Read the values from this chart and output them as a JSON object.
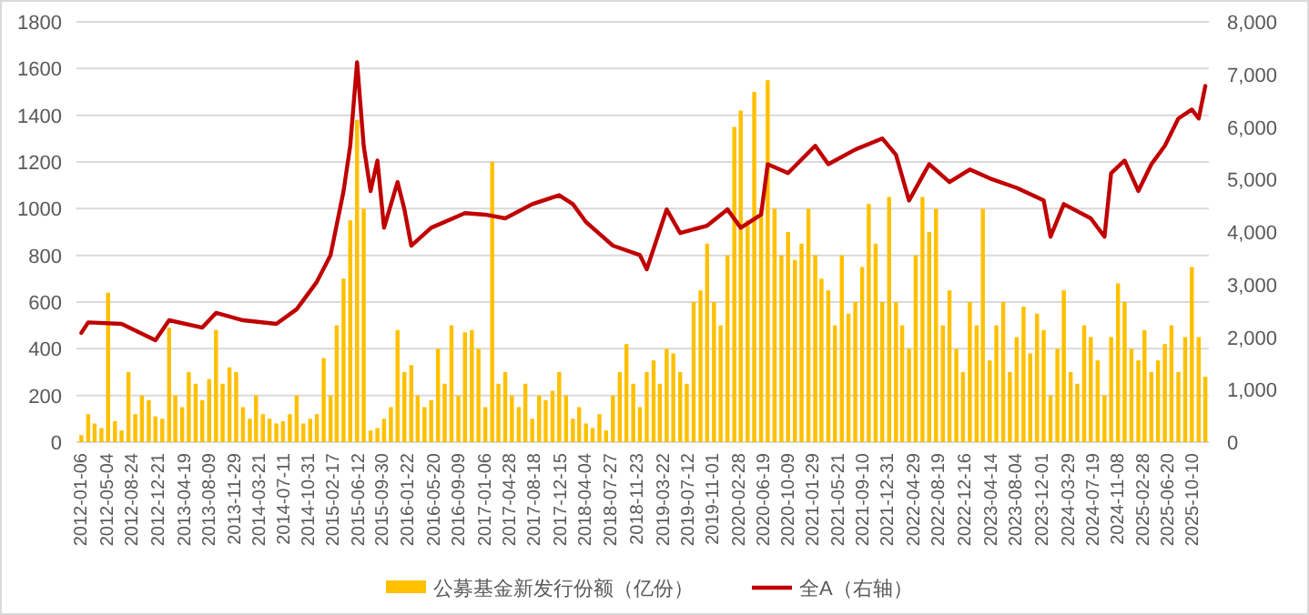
{
  "chart_data": {
    "type": "bar",
    "legend": "bottom",
    "grid": "y",
    "xlim": [
      "2011-12-24",
      "2025-12-31"
    ],
    "xticks": [
      "2012-01-06",
      "2012-05-04",
      "2012-08-24",
      "2012-12-21",
      "2013-04-19",
      "2013-08-09",
      "2013-11-29",
      "2014-03-21",
      "2014-07-11",
      "2014-10-31",
      "2015-02-17",
      "2015-06-12",
      "2015-09-30",
      "2016-01-22",
      "2016-05-20",
      "2016-09-09",
      "2017-01-06",
      "2017-04-28",
      "2017-08-18",
      "2017-12-15",
      "2018-04-04",
      "2018-07-27",
      "2018-11-23",
      "2019-03-22",
      "2019-07-12",
      "2019-11-01",
      "2020-02-28",
      "2020-06-19",
      "2020-10-09",
      "2021-01-29",
      "2021-05-21",
      "2021-09-10",
      "2021-12-31",
      "2022-04-29",
      "2022-08-19",
      "2022-12-16",
      "2023-04-14",
      "2023-08-04",
      "2023-12-01",
      "2024-03-29",
      "2024-07-19",
      "2024-11-08",
      "2025-02-28",
      "2025-06-20",
      "2025-10-10"
    ],
    "ylim": [
      0,
      1800
    ],
    "yticks": [
      0,
      200,
      400,
      600,
      800,
      1000,
      1200,
      1400,
      1600,
      1800
    ],
    "y2lim": [
      0,
      8000
    ],
    "y2ticks": [
      {
        "value": 0,
        "label": "0"
      },
      {
        "value": 1000,
        "label": "1,000"
      },
      {
        "value": 2000,
        "label": "2,000"
      },
      {
        "value": 3000,
        "label": "3,000"
      },
      {
        "value": 4000,
        "label": "4,000"
      },
      {
        "value": 5000,
        "label": "5,000"
      },
      {
        "value": 6000,
        "label": "6,000"
      },
      {
        "value": 7000,
        "label": "7,000"
      },
      {
        "value": 8000,
        "label": "8,000"
      }
    ],
    "series": [
      {
        "name": "公募基金新发行份额（亿份）",
        "color": "#ffc000",
        "x": [
          "2012-01",
          "2012-02",
          "2012-03",
          "2012-04",
          "2012-05",
          "2012-06",
          "2012-07",
          "2012-08",
          "2012-09",
          "2012-10",
          "2012-11",
          "2012-12",
          "2013-01",
          "2013-02",
          "2013-03",
          "2013-04",
          "2013-05",
          "2013-06",
          "2013-07",
          "2013-08",
          "2013-09",
          "2013-10",
          "2013-11",
          "2013-12",
          "2014-01",
          "2014-02",
          "2014-03",
          "2014-04",
          "2014-05",
          "2014-06",
          "2014-07",
          "2014-08",
          "2014-09",
          "2014-10",
          "2014-11",
          "2014-12",
          "2015-01",
          "2015-02",
          "2015-03",
          "2015-04",
          "2015-05",
          "2015-06",
          "2015-07",
          "2015-08",
          "2015-09",
          "2015-10",
          "2015-11",
          "2015-12",
          "2016-01",
          "2016-02",
          "2016-03",
          "2016-04",
          "2016-05",
          "2016-06",
          "2016-07",
          "2016-08",
          "2016-09",
          "2016-10",
          "2016-11",
          "2016-12",
          "2017-01",
          "2017-02",
          "2017-03",
          "2017-04",
          "2017-05",
          "2017-06",
          "2017-07",
          "2017-08",
          "2017-09",
          "2017-10",
          "2017-11",
          "2017-12",
          "2018-01",
          "2018-02",
          "2018-03",
          "2018-04",
          "2018-05",
          "2018-06",
          "2018-07",
          "2018-08",
          "2018-09",
          "2018-10",
          "2018-11",
          "2018-12",
          "2019-01",
          "2019-02",
          "2019-03",
          "2019-04",
          "2019-05",
          "2019-06",
          "2019-07",
          "2019-08",
          "2019-09",
          "2019-10",
          "2019-11",
          "2019-12",
          "2020-01",
          "2020-02",
          "2020-03",
          "2020-04",
          "2020-05",
          "2020-06",
          "2020-07",
          "2020-08",
          "2020-09",
          "2020-10",
          "2020-11",
          "2020-12",
          "2021-01",
          "2021-02",
          "2021-03",
          "2021-04",
          "2021-05",
          "2021-06",
          "2021-07",
          "2021-08",
          "2021-09",
          "2021-10",
          "2021-11",
          "2021-12",
          "2022-01",
          "2022-02",
          "2022-03",
          "2022-04",
          "2022-05",
          "2022-06",
          "2022-07",
          "2022-08",
          "2022-09",
          "2022-10",
          "2022-11",
          "2022-12",
          "2023-01",
          "2023-02",
          "2023-03",
          "2023-04",
          "2023-05",
          "2023-06",
          "2023-07",
          "2023-08",
          "2023-09",
          "2023-10",
          "2023-11",
          "2023-12",
          "2024-01",
          "2024-02",
          "2024-03",
          "2024-04",
          "2024-05",
          "2024-06",
          "2024-07",
          "2024-08",
          "2024-09",
          "2024-10",
          "2024-11",
          "2024-12",
          "2025-01",
          "2025-02",
          "2025-03",
          "2025-04",
          "2025-05",
          "2025-06",
          "2025-07",
          "2025-08",
          "2025-09",
          "2025-10",
          "2025-11",
          "2025-12"
        ],
        "values": [
          30,
          120,
          80,
          60,
          640,
          90,
          50,
          300,
          120,
          200,
          180,
          110,
          100,
          490,
          200,
          150,
          300,
          250,
          180,
          270,
          480,
          250,
          320,
          300,
          150,
          100,
          200,
          120,
          100,
          80,
          90,
          120,
          200,
          80,
          100,
          120,
          360,
          200,
          500,
          700,
          950,
          1380,
          1000,
          50,
          60,
          100,
          150,
          480,
          300,
          330,
          200,
          150,
          180,
          400,
          250,
          500,
          200,
          470,
          480,
          400,
          150,
          1200,
          250,
          300,
          200,
          150,
          250,
          100,
          200,
          180,
          220,
          300,
          200,
          100,
          150,
          80,
          60,
          120,
          50,
          200,
          300,
          420,
          250,
          150,
          300,
          350,
          250,
          400,
          380,
          300,
          250,
          600,
          650,
          850,
          600,
          500,
          800,
          1350,
          1420,
          950,
          1500,
          1000,
          1550,
          1000,
          800,
          900,
          780,
          850,
          1000,
          800,
          700,
          650,
          500,
          800,
          550,
          600,
          750,
          1020,
          850,
          600,
          1050,
          600,
          500,
          400,
          800,
          1050,
          900,
          1000,
          500,
          650,
          400,
          300,
          600,
          500,
          1000,
          350,
          500,
          600,
          300,
          450,
          580,
          380,
          550,
          480,
          200,
          400,
          650,
          300,
          250,
          500,
          450,
          350,
          200,
          450,
          680,
          600,
          400,
          350,
          480,
          300,
          350,
          420,
          500,
          300,
          450,
          750,
          450,
          280
        ]
      },
      {
        "type": "line",
        "name": "全A（右轴）",
        "color": "#c00000",
        "axis": "y2",
        "x": [
          "2012-01",
          "2012-02",
          "2012-07",
          "2012-12",
          "2013-02",
          "2013-07",
          "2013-09",
          "2014-01",
          "2014-06",
          "2014-09",
          "2014-12",
          "2015-02",
          "2015-04",
          "2015-05",
          "2015-06",
          "2015-07",
          "2015-08",
          "2015-09",
          "2015-10",
          "2015-12",
          "2016-01",
          "2016-02",
          "2016-05",
          "2016-10",
          "2017-01",
          "2017-04",
          "2017-08",
          "2017-12",
          "2018-02",
          "2018-04",
          "2018-08",
          "2018-12",
          "2019-01",
          "2019-04",
          "2019-06",
          "2019-10",
          "2020-01",
          "2020-03",
          "2020-06",
          "2020-07",
          "2020-10",
          "2021-02",
          "2021-04",
          "2021-08",
          "2021-12",
          "2022-02",
          "2022-04",
          "2022-07",
          "2022-10",
          "2023-01",
          "2023-04",
          "2023-08",
          "2023-12",
          "2024-01",
          "2024-03",
          "2024-07",
          "2024-09",
          "2024-10",
          "2024-12",
          "2025-02",
          "2025-04",
          "2025-06",
          "2025-08",
          "2025-10",
          "2025-11",
          "2025-12"
        ],
        "values": [
          2080,
          2280,
          2250,
          1940,
          2320,
          2180,
          2460,
          2320,
          2250,
          2530,
          3050,
          3560,
          4780,
          5640,
          7230,
          5640,
          4780,
          5360,
          4080,
          4950,
          4430,
          3740,
          4080,
          4360,
          4330,
          4260,
          4530,
          4700,
          4530,
          4190,
          3740,
          3560,
          3290,
          4430,
          3980,
          4120,
          4430,
          4080,
          4330,
          5290,
          5120,
          5640,
          5290,
          5570,
          5780,
          5470,
          4600,
          5290,
          4950,
          5190,
          5020,
          4840,
          4600,
          3910,
          4530,
          4260,
          3910,
          5120,
          5360,
          4780,
          5290,
          5640,
          6160,
          6330,
          6160,
          6780
        ]
      }
    ]
  }
}
